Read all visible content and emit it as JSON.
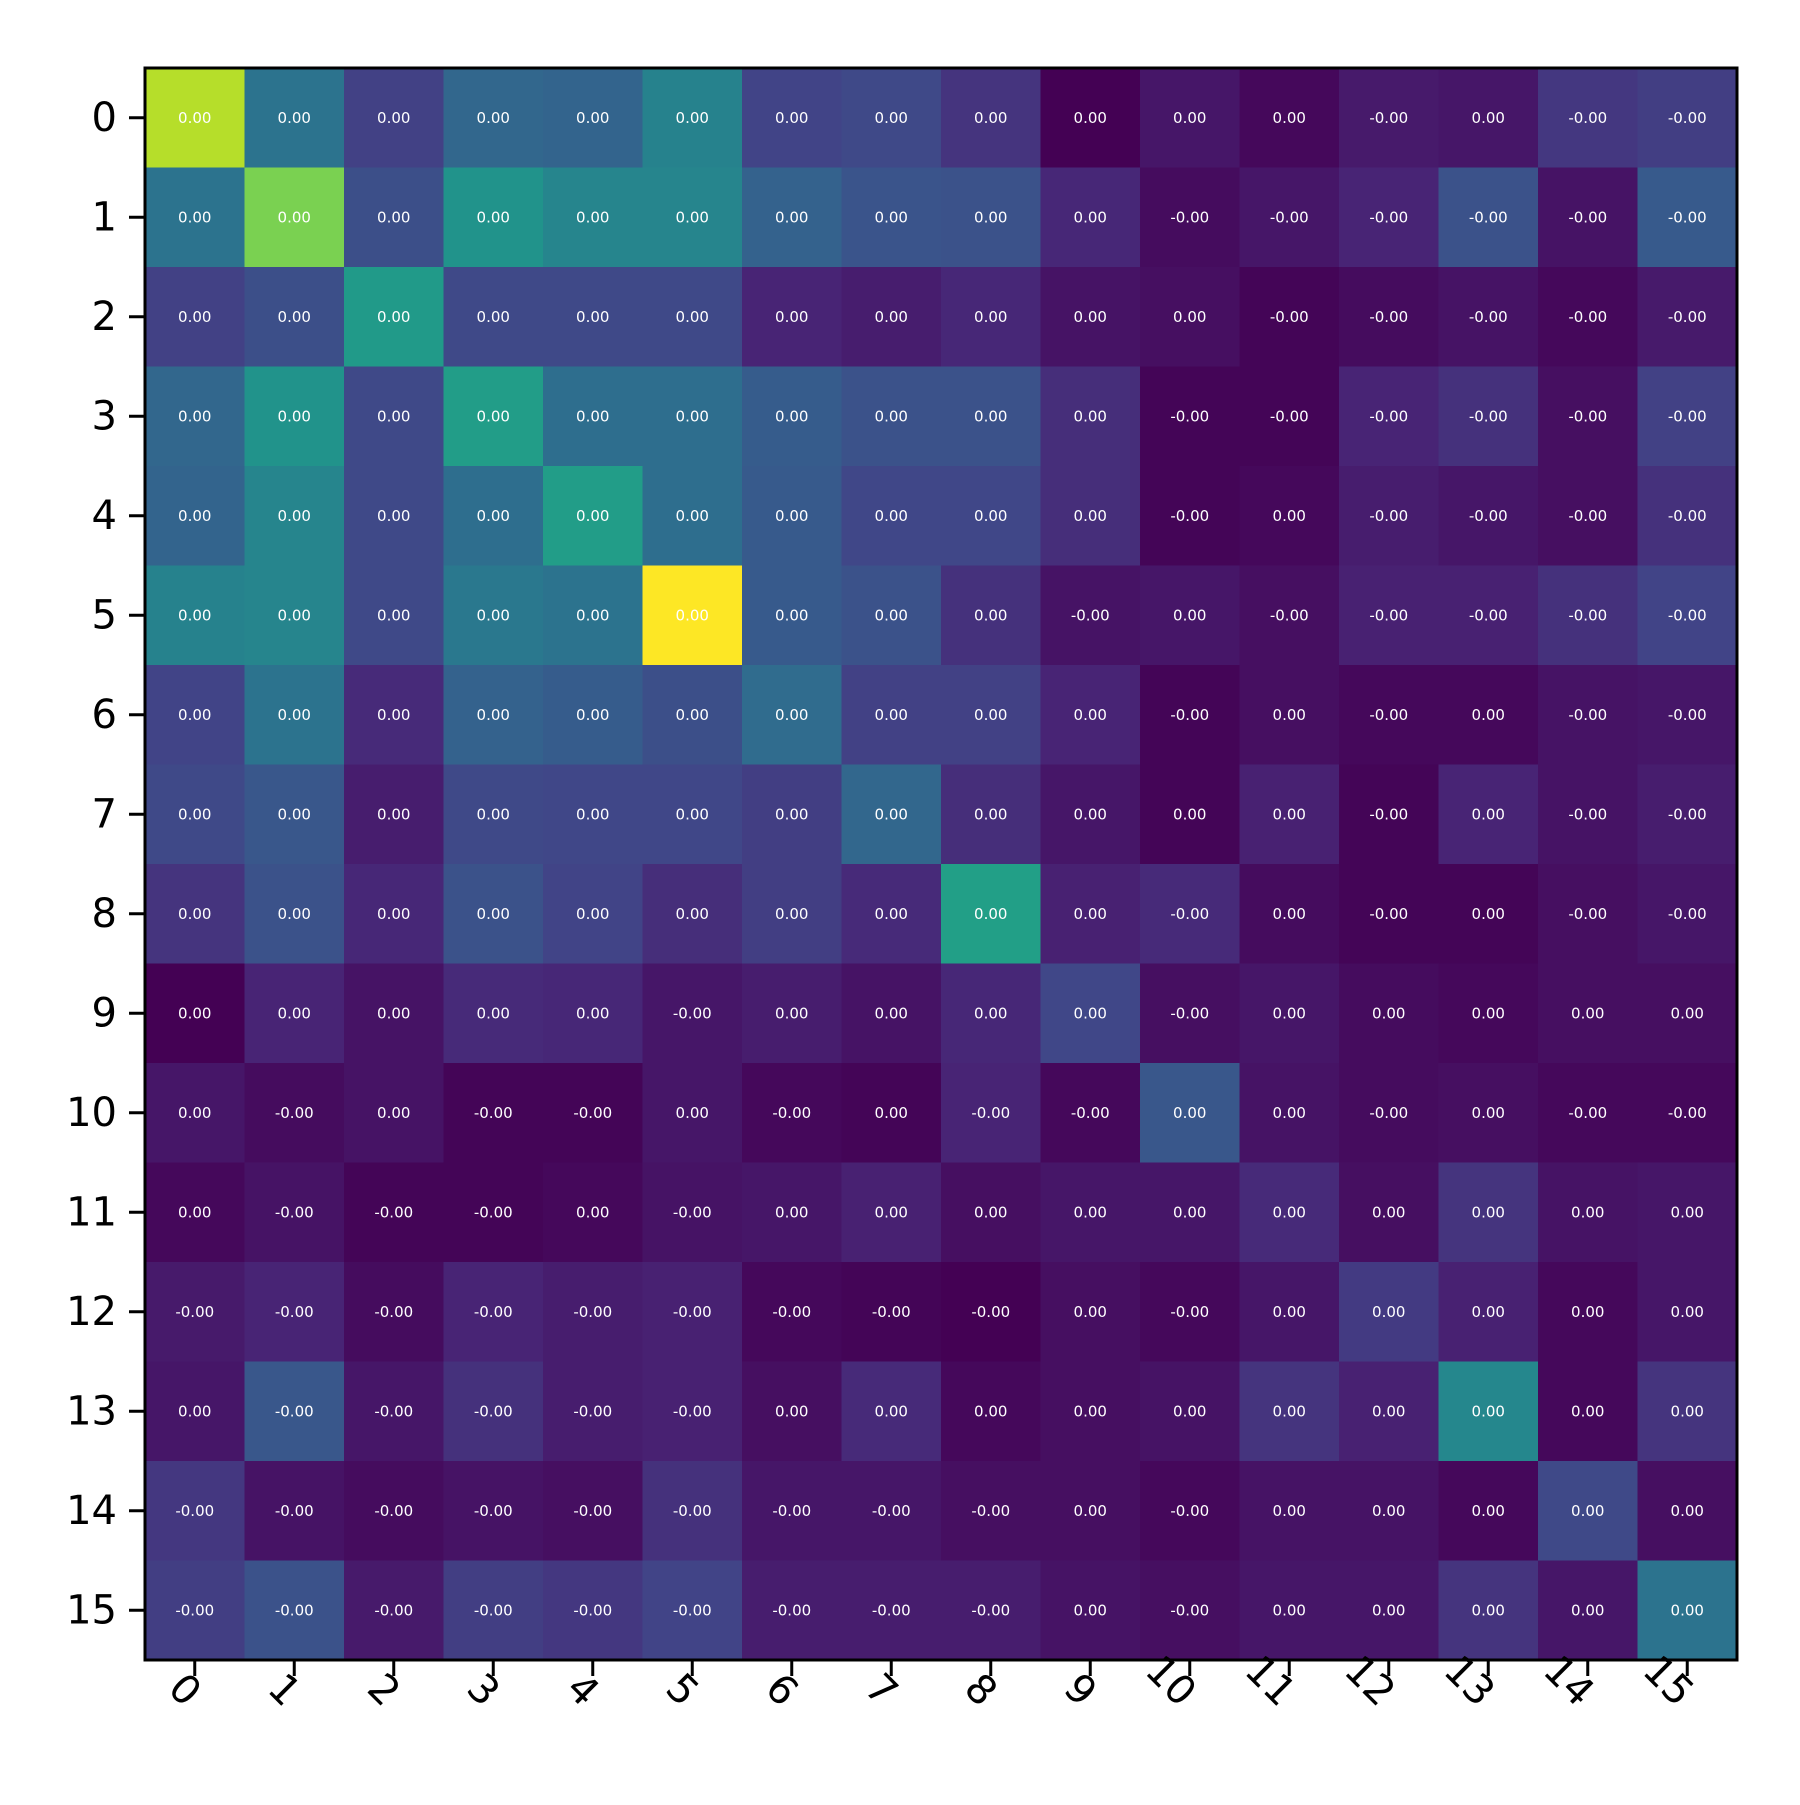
{
  "chart_data": {
    "type": "heatmap",
    "title": "",
    "xlabel": "",
    "ylabel": "",
    "x_categories": [
      "0",
      "1",
      "2",
      "3",
      "4",
      "5",
      "6",
      "7",
      "8",
      "9",
      "10",
      "11",
      "12",
      "13",
      "14",
      "15"
    ],
    "y_categories": [
      "0",
      "1",
      "2",
      "3",
      "4",
      "5",
      "6",
      "7",
      "8",
      "9",
      "10",
      "11",
      "12",
      "13",
      "14",
      "15"
    ],
    "x_tick_rotation": 45,
    "colormap": "viridis",
    "color_range": [
      0,
      1
    ],
    "intensity": [
      [
        0.89,
        0.38,
        0.19,
        0.33,
        0.32,
        0.44,
        0.2,
        0.22,
        0.15,
        0.0,
        0.06,
        0.02,
        0.07,
        0.06,
        0.16,
        0.18
      ],
      [
        0.38,
        0.8,
        0.24,
        0.51,
        0.45,
        0.45,
        0.31,
        0.26,
        0.25,
        0.11,
        0.03,
        0.06,
        0.1,
        0.25,
        0.05,
        0.28
      ],
      [
        0.19,
        0.24,
        0.54,
        0.22,
        0.22,
        0.22,
        0.1,
        0.08,
        0.11,
        0.05,
        0.04,
        0.01,
        0.03,
        0.05,
        0.02,
        0.07
      ],
      [
        0.33,
        0.51,
        0.22,
        0.55,
        0.36,
        0.36,
        0.29,
        0.25,
        0.25,
        0.13,
        0.01,
        0.01,
        0.1,
        0.14,
        0.04,
        0.19
      ],
      [
        0.32,
        0.45,
        0.22,
        0.36,
        0.55,
        0.36,
        0.28,
        0.21,
        0.21,
        0.13,
        0.01,
        0.02,
        0.08,
        0.06,
        0.04,
        0.14
      ],
      [
        0.44,
        0.45,
        0.22,
        0.4,
        0.38,
        1.0,
        0.28,
        0.25,
        0.14,
        0.05,
        0.06,
        0.04,
        0.09,
        0.09,
        0.14,
        0.2
      ],
      [
        0.2,
        0.38,
        0.12,
        0.31,
        0.29,
        0.24,
        0.35,
        0.19,
        0.19,
        0.1,
        0.01,
        0.04,
        0.02,
        0.02,
        0.05,
        0.06
      ],
      [
        0.22,
        0.27,
        0.08,
        0.22,
        0.21,
        0.21,
        0.18,
        0.33,
        0.13,
        0.06,
        0.01,
        0.09,
        0.01,
        0.1,
        0.05,
        0.08
      ],
      [
        0.15,
        0.25,
        0.11,
        0.25,
        0.2,
        0.13,
        0.18,
        0.12,
        0.56,
        0.09,
        0.12,
        0.03,
        0.01,
        0.01,
        0.04,
        0.06
      ],
      [
        0.0,
        0.1,
        0.05,
        0.12,
        0.11,
        0.06,
        0.08,
        0.05,
        0.11,
        0.21,
        0.04,
        0.06,
        0.03,
        0.02,
        0.04,
        0.04
      ],
      [
        0.06,
        0.03,
        0.05,
        0.01,
        0.01,
        0.06,
        0.02,
        0.01,
        0.1,
        0.02,
        0.27,
        0.05,
        0.03,
        0.04,
        0.02,
        0.02
      ],
      [
        0.02,
        0.05,
        0.01,
        0.01,
        0.02,
        0.05,
        0.06,
        0.09,
        0.04,
        0.06,
        0.06,
        0.12,
        0.04,
        0.15,
        0.05,
        0.06
      ],
      [
        0.07,
        0.1,
        0.03,
        0.1,
        0.08,
        0.09,
        0.02,
        0.01,
        0.0,
        0.04,
        0.02,
        0.06,
        0.17,
        0.09,
        0.02,
        0.06
      ],
      [
        0.06,
        0.27,
        0.06,
        0.14,
        0.08,
        0.09,
        0.04,
        0.12,
        0.02,
        0.04,
        0.05,
        0.15,
        0.09,
        0.46,
        0.02,
        0.15
      ],
      [
        0.16,
        0.05,
        0.03,
        0.05,
        0.04,
        0.14,
        0.06,
        0.06,
        0.04,
        0.04,
        0.02,
        0.05,
        0.05,
        0.02,
        0.22,
        0.04
      ],
      [
        0.18,
        0.25,
        0.07,
        0.18,
        0.16,
        0.2,
        0.08,
        0.08,
        0.08,
        0.05,
        0.04,
        0.06,
        0.06,
        0.15,
        0.06,
        0.38
      ]
    ],
    "cell_labels": [
      [
        "0.00",
        "0.00",
        "0.00",
        "0.00",
        "0.00",
        "0.00",
        "0.00",
        "0.00",
        "0.00",
        "0.00",
        "0.00",
        "0.00",
        "-0.00",
        "0.00",
        "-0.00",
        "-0.00"
      ],
      [
        "0.00",
        "0.00",
        "0.00",
        "0.00",
        "0.00",
        "0.00",
        "0.00",
        "0.00",
        "0.00",
        "0.00",
        "-0.00",
        "-0.00",
        "-0.00",
        "-0.00",
        "-0.00",
        "-0.00"
      ],
      [
        "0.00",
        "0.00",
        "0.00",
        "0.00",
        "0.00",
        "0.00",
        "0.00",
        "0.00",
        "0.00",
        "0.00",
        "0.00",
        "-0.00",
        "-0.00",
        "-0.00",
        "-0.00",
        "-0.00"
      ],
      [
        "0.00",
        "0.00",
        "0.00",
        "0.00",
        "0.00",
        "0.00",
        "0.00",
        "0.00",
        "0.00",
        "0.00",
        "-0.00",
        "-0.00",
        "-0.00",
        "-0.00",
        "-0.00",
        "-0.00"
      ],
      [
        "0.00",
        "0.00",
        "0.00",
        "0.00",
        "0.00",
        "0.00",
        "0.00",
        "0.00",
        "0.00",
        "0.00",
        "-0.00",
        "0.00",
        "-0.00",
        "-0.00",
        "-0.00",
        "-0.00"
      ],
      [
        "0.00",
        "0.00",
        "0.00",
        "0.00",
        "0.00",
        "0.00",
        "0.00",
        "0.00",
        "0.00",
        "-0.00",
        "0.00",
        "-0.00",
        "-0.00",
        "-0.00",
        "-0.00",
        "-0.00"
      ],
      [
        "0.00",
        "0.00",
        "0.00",
        "0.00",
        "0.00",
        "0.00",
        "0.00",
        "0.00",
        "0.00",
        "0.00",
        "-0.00",
        "0.00",
        "-0.00",
        "0.00",
        "-0.00",
        "-0.00"
      ],
      [
        "0.00",
        "0.00",
        "0.00",
        "0.00",
        "0.00",
        "0.00",
        "0.00",
        "0.00",
        "0.00",
        "0.00",
        "0.00",
        "0.00",
        "-0.00",
        "0.00",
        "-0.00",
        "-0.00"
      ],
      [
        "0.00",
        "0.00",
        "0.00",
        "0.00",
        "0.00",
        "0.00",
        "0.00",
        "0.00",
        "0.00",
        "0.00",
        "-0.00",
        "0.00",
        "-0.00",
        "0.00",
        "-0.00",
        "-0.00"
      ],
      [
        "0.00",
        "0.00",
        "0.00",
        "0.00",
        "0.00",
        "-0.00",
        "0.00",
        "0.00",
        "0.00",
        "0.00",
        "-0.00",
        "0.00",
        "0.00",
        "0.00",
        "0.00",
        "0.00"
      ],
      [
        "0.00",
        "-0.00",
        "0.00",
        "-0.00",
        "-0.00",
        "0.00",
        "-0.00",
        "0.00",
        "-0.00",
        "-0.00",
        "0.00",
        "0.00",
        "-0.00",
        "0.00",
        "-0.00",
        "-0.00"
      ],
      [
        "0.00",
        "-0.00",
        "-0.00",
        "-0.00",
        "0.00",
        "-0.00",
        "0.00",
        "0.00",
        "0.00",
        "0.00",
        "0.00",
        "0.00",
        "0.00",
        "0.00",
        "0.00",
        "0.00"
      ],
      [
        "-0.00",
        "-0.00",
        "-0.00",
        "-0.00",
        "-0.00",
        "-0.00",
        "-0.00",
        "-0.00",
        "-0.00",
        "0.00",
        "-0.00",
        "0.00",
        "0.00",
        "0.00",
        "0.00",
        "0.00"
      ],
      [
        "0.00",
        "-0.00",
        "-0.00",
        "-0.00",
        "-0.00",
        "-0.00",
        "0.00",
        "0.00",
        "0.00",
        "0.00",
        "0.00",
        "0.00",
        "0.00",
        "0.00",
        "0.00",
        "0.00"
      ],
      [
        "-0.00",
        "-0.00",
        "-0.00",
        "-0.00",
        "-0.00",
        "-0.00",
        "-0.00",
        "-0.00",
        "-0.00",
        "0.00",
        "-0.00",
        "0.00",
        "0.00",
        "0.00",
        "0.00",
        "0.00"
      ],
      [
        "-0.00",
        "-0.00",
        "-0.00",
        "-0.00",
        "-0.00",
        "-0.00",
        "-0.00",
        "-0.00",
        "-0.00",
        "0.00",
        "-0.00",
        "0.00",
        "0.00",
        "0.00",
        "0.00",
        "0.00"
      ]
    ],
    "grid": false,
    "legend": "none"
  }
}
